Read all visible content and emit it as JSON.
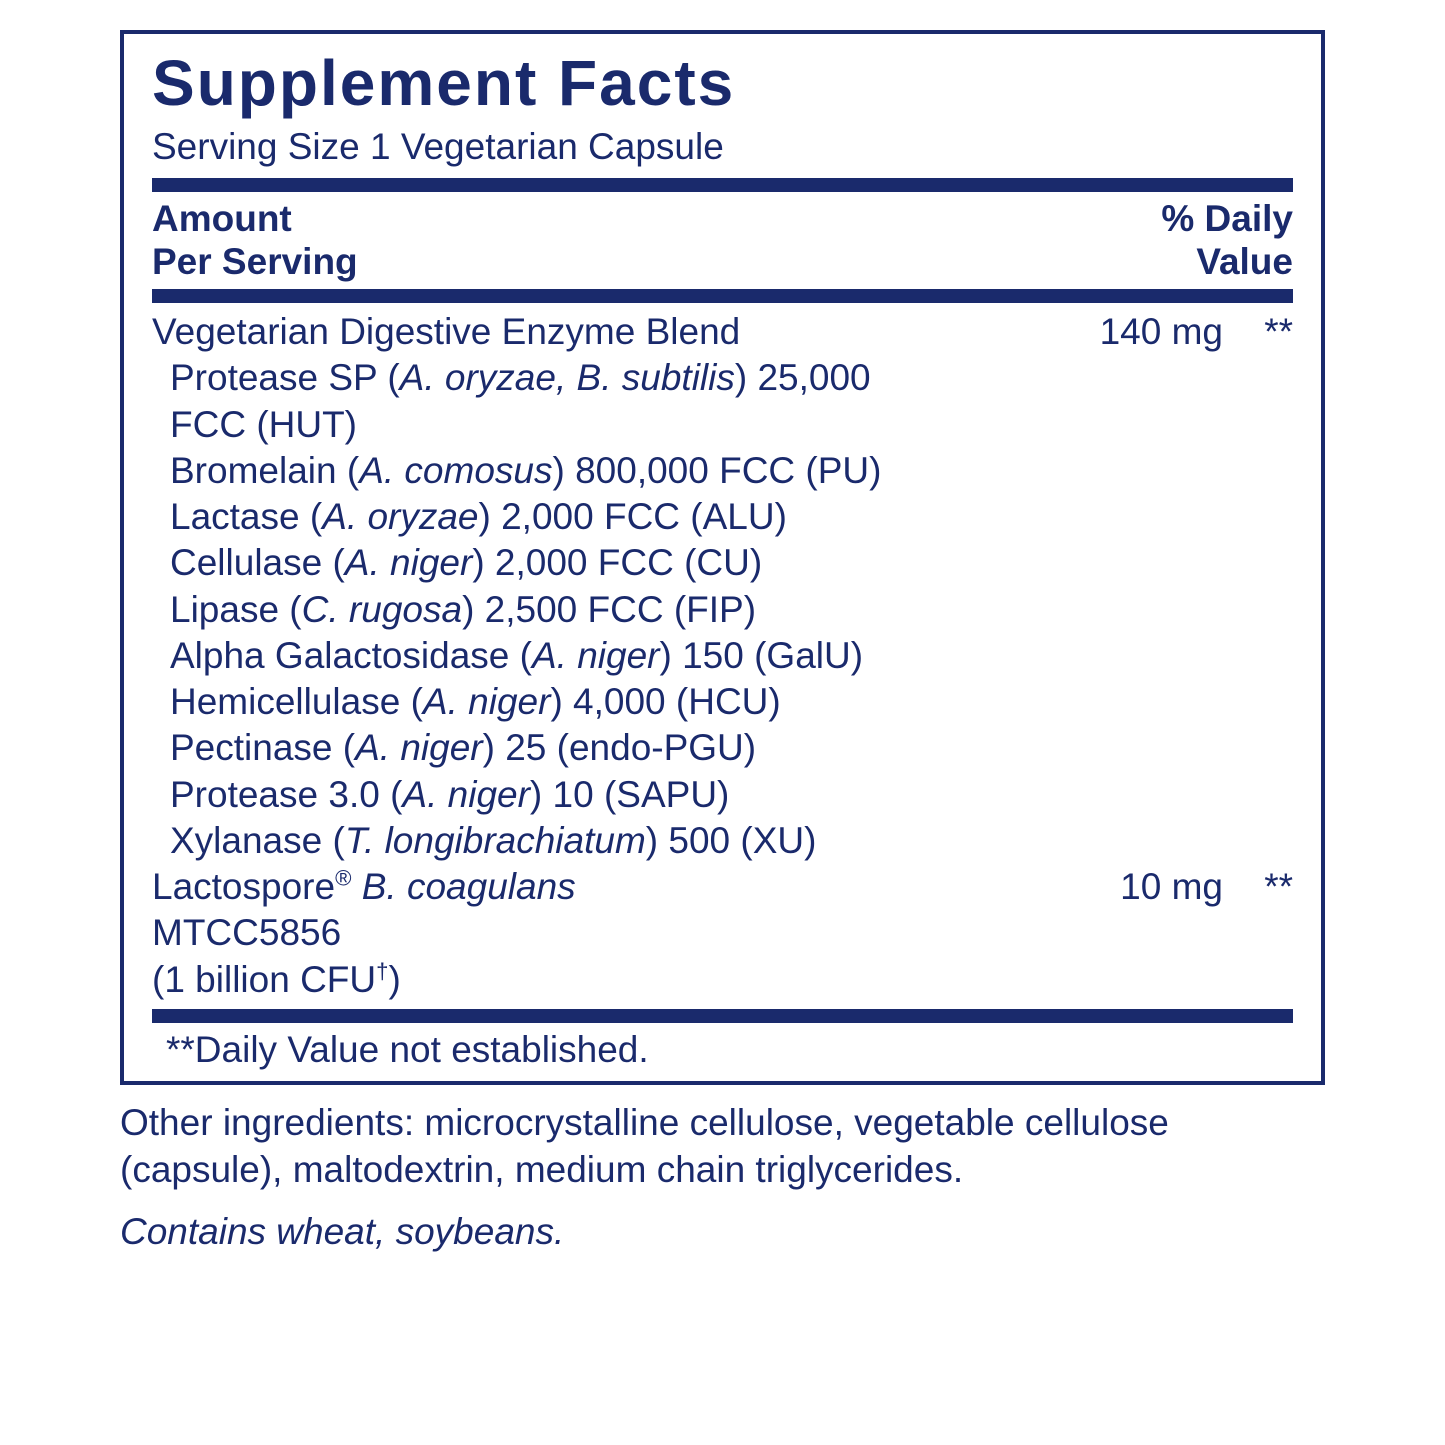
{
  "colors": {
    "ink": "#1a2a6c",
    "bg": "#ffffff"
  },
  "title": "Supplement Facts",
  "serving": "Serving Size 1 Vegetarian Capsule",
  "header": {
    "left1": "Amount",
    "left2": "Per Serving",
    "right1": "% Daily",
    "right2": "Value"
  },
  "item1": {
    "name": "Vegetarian Digestive Enzyme Blend",
    "amount": "140 mg",
    "dv": "**"
  },
  "subs": {
    "s1a": "Protease SP (",
    "s1i": "A. oryzae, B. subtilis",
    "s1b": ") 25,000",
    "s1c": "FCC (HUT)",
    "s2a": "Bromelain (",
    "s2i": "A. comosus",
    "s2b": ") 800,000 FCC (PU)",
    "s3a": "Lactase (",
    "s3i": "A. oryzae",
    "s3b": ") 2,000 FCC (ALU)",
    "s4a": "Cellulase (",
    "s4i": "A. niger",
    "s4b": ") 2,000 FCC (CU)",
    "s5a": "Lipase (",
    "s5i": "C. rugosa",
    "s5b": ") 2,500 FCC (FIP)",
    "s6a": "Alpha Galactosidase (",
    "s6i": "A. niger",
    "s6b": ") 150 (GalU)",
    "s7a": "Hemicellulase (",
    "s7i": "A. niger",
    "s7b": ") 4,000 (HCU)",
    "s8a": "Pectinase (",
    "s8i": "A. niger",
    "s8b": ") 25 (endo-PGU)",
    "s9a": "Protease 3.0 (",
    "s9i": "A. niger",
    "s9b": ") 10 (SAPU)",
    "s10a": "Xylanase (",
    "s10i": "T. longibrachiatum",
    "s10b": ") 500 (XU)"
  },
  "item2": {
    "name_a": "Lactospore",
    "name_b": " B. coagulans",
    "amount": "10 mg",
    "dv": "**",
    "line2": "MTCC5856",
    "line3a": " (1 billion CFU",
    "line3b": ")"
  },
  "footnote": "**Daily Value not established.",
  "other_label": "Other ingredients: microcrystalline cellulose, vegetable cellulose (capsule), maltodextrin, medium chain triglycerides.",
  "contains": "Contains wheat, soybeans."
}
